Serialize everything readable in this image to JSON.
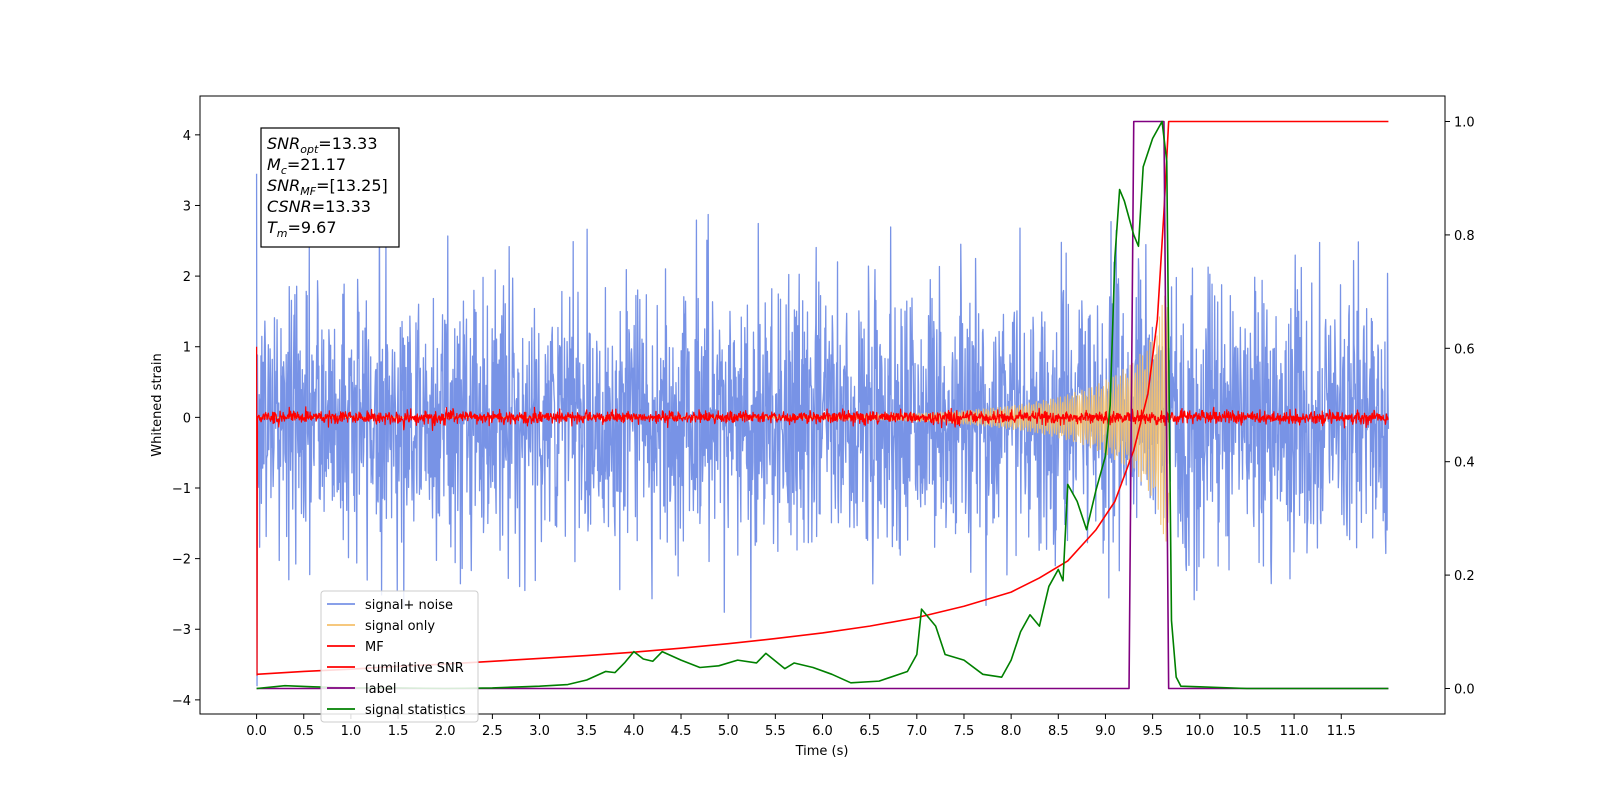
{
  "chart_data": {
    "type": "line",
    "title": "",
    "xlabel": "Time (s)",
    "ylabel": "Whitened strain",
    "xlim": [
      -0.6,
      12.6
    ],
    "ylim_left": [
      -4.2,
      4.55
    ],
    "ylim_right": [
      -0.045,
      1.045
    ],
    "x_ticks": [
      0.0,
      0.5,
      1.0,
      1.5,
      2.0,
      2.5,
      3.0,
      3.5,
      4.0,
      4.5,
      5.0,
      5.5,
      6.0,
      6.5,
      7.0,
      7.5,
      8.0,
      8.5,
      9.0,
      9.5,
      10.0,
      10.5,
      11.0,
      11.5
    ],
    "x_tick_labels": [
      "0.0",
      "0.5",
      "1.0",
      "1.5",
      "2.0",
      "2.5",
      "3.0",
      "3.5",
      "4.0",
      "4.5",
      "5.0",
      "5.5",
      "6.0",
      "6.5",
      "7.0",
      "7.5",
      "8.0",
      "8.5",
      "9.0",
      "9.5",
      "10.0",
      "10.5",
      "11.0",
      "11.5"
    ],
    "y_ticks_left": [
      4,
      3,
      2,
      1,
      0,
      -1,
      -2,
      -3,
      -4
    ],
    "y_tick_labels_left": [
      "4",
      "3",
      "2",
      "1",
      "0",
      "−1",
      "−2",
      "−3",
      "−4"
    ],
    "y_ticks_right": [
      1.0,
      0.8,
      0.6,
      0.4,
      0.2,
      0.0
    ],
    "y_tick_labels_right": [
      "1.0",
      "0.8",
      "0.6",
      "0.4",
      "0.2",
      "0.0"
    ],
    "grid": false,
    "legend_position": "lower-left",
    "annotation_box": {
      "lines": [
        {
          "var": "SNR",
          "sub": "opt",
          "value": "=13.33"
        },
        {
          "var": "M",
          "sub": "c",
          "value": "=21.17"
        },
        {
          "var": "SNR",
          "sub": "MF",
          "value": "=[13.25]"
        },
        {
          "var": "CSNR",
          "sub": "",
          "value": "=13.33"
        },
        {
          "var": "T",
          "sub": "m",
          "value": "=9.67"
        }
      ]
    },
    "series": [
      {
        "name": "signal+ noise",
        "color": "#7893e6",
        "axis": "left",
        "kind": "noise",
        "x_range": [
          0.0,
          12.0
        ],
        "sigma": 0.95,
        "min": -3.8,
        "max": 3.45
      },
      {
        "name": "signal only",
        "color": "#f5c16c",
        "axis": "left",
        "kind": "chirp",
        "x_range": [
          0.0,
          9.67
        ],
        "max_amplitude": 2.0
      },
      {
        "name": "MF",
        "color": "#ff0000",
        "axis": "left",
        "kind": "noise",
        "x_range": [
          0.0,
          12.0
        ],
        "sigma": 0.045,
        "min": -3.65,
        "max": 1.0
      },
      {
        "name": "cumilative SNR",
        "color": "#ff0000",
        "axis": "right",
        "kind": "line",
        "x": [
          0.0,
          0.5,
          1.0,
          1.5,
          2.0,
          2.5,
          3.0,
          3.5,
          4.0,
          4.5,
          5.0,
          5.5,
          6.0,
          6.5,
          7.0,
          7.5,
          8.0,
          8.3,
          8.6,
          8.9,
          9.1,
          9.3,
          9.45,
          9.55,
          9.62,
          9.67,
          10.0,
          11.0,
          12.0
        ],
        "y": [
          0.025,
          0.03,
          0.034,
          0.039,
          0.043,
          0.048,
          0.053,
          0.058,
          0.064,
          0.071,
          0.079,
          0.088,
          0.098,
          0.11,
          0.125,
          0.145,
          0.17,
          0.195,
          0.225,
          0.28,
          0.33,
          0.42,
          0.52,
          0.65,
          0.84,
          1.0,
          1.0,
          1.0,
          1.0
        ]
      },
      {
        "name": "label",
        "color": "#800080",
        "axis": "right",
        "kind": "line",
        "x": [
          0.0,
          9.25,
          9.3,
          9.62,
          9.67,
          12.0
        ],
        "y": [
          0.0,
          0.0,
          1.0,
          1.0,
          0.0,
          0.0
        ]
      },
      {
        "name": "signal statistics",
        "color": "#008000",
        "axis": "right",
        "kind": "line",
        "x": [
          0.0,
          0.3,
          0.6,
          1.0,
          1.5,
          2.0,
          2.5,
          3.0,
          3.3,
          3.5,
          3.7,
          3.8,
          3.9,
          4.0,
          4.1,
          4.2,
          4.3,
          4.5,
          4.7,
          4.9,
          5.1,
          5.3,
          5.4,
          5.6,
          5.7,
          5.9,
          6.1,
          6.3,
          6.6,
          6.9,
          7.0,
          7.05,
          7.2,
          7.3,
          7.5,
          7.7,
          7.9,
          8.0,
          8.1,
          8.2,
          8.3,
          8.4,
          8.5,
          8.55,
          8.6,
          8.7,
          8.8,
          8.9,
          9.0,
          9.05,
          9.1,
          9.15,
          9.2,
          9.25,
          9.3,
          9.35,
          9.4,
          9.5,
          9.6,
          9.65,
          9.7,
          9.75,
          9.8,
          10.0,
          10.5,
          11.0,
          12.0
        ],
        "y": [
          0.0,
          0.005,
          0.003,
          0.001,
          0.001,
          0.0,
          0.001,
          0.004,
          0.007,
          0.015,
          0.03,
          0.028,
          0.045,
          0.065,
          0.052,
          0.048,
          0.065,
          0.05,
          0.037,
          0.04,
          0.05,
          0.045,
          0.062,
          0.035,
          0.045,
          0.037,
          0.025,
          0.01,
          0.013,
          0.03,
          0.06,
          0.14,
          0.11,
          0.06,
          0.05,
          0.025,
          0.02,
          0.05,
          0.1,
          0.13,
          0.11,
          0.18,
          0.21,
          0.19,
          0.36,
          0.33,
          0.28,
          0.35,
          0.41,
          0.5,
          0.76,
          0.88,
          0.86,
          0.83,
          0.8,
          0.78,
          0.92,
          0.97,
          1.0,
          0.93,
          0.12,
          0.02,
          0.004,
          0.003,
          0.0,
          0.0,
          0.0
        ]
      }
    ]
  }
}
